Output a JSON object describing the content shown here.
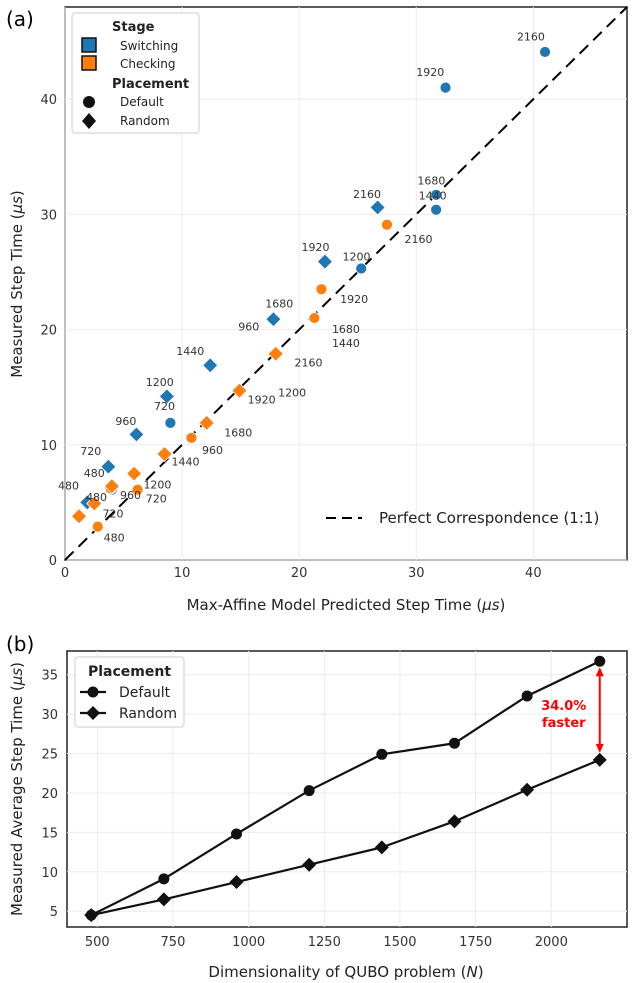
{
  "panel_a": {
    "label": "(a)",
    "chart_data": {
      "type": "scatter",
      "xlabel": "Max-Affine Model Predicted Step Time (",
      "xlabel_unit": "μs",
      "ylabel": "Measured Step Time (",
      "ylabel_unit": "μs",
      "xlim": [
        0,
        48
      ],
      "ylim": [
        0,
        48
      ],
      "xticks": [
        0,
        10,
        20,
        30,
        40
      ],
      "yticks": [
        0,
        10,
        20,
        30,
        40
      ],
      "reference_line": {
        "label": "Perfect Correspondence (1:1)",
        "slope": 1
      },
      "colors": {
        "Switching": "#1f77b4",
        "Checking": "#ff7f0e"
      },
      "legend": {
        "stage_title": "Stage",
        "stage_items": [
          "Switching",
          "Checking"
        ],
        "placement_title": "Placement",
        "placement_items": [
          "Default",
          "Random"
        ]
      },
      "series": [
        {
          "name": "Switching Default",
          "stage": "Switching",
          "marker": "circle",
          "points": [
            {
              "n": 480,
              "x": 2.5,
              "y": 5.0
            },
            {
              "n": 720,
              "x": 4.0,
              "y": 6.1
            },
            {
              "n": 960,
              "x": 9.0,
              "y": 11.9
            },
            {
              "n": 1200,
              "x": 25.3,
              "y": 25.3
            },
            {
              "n": 1440,
              "x": 31.7,
              "y": 30.4
            },
            {
              "n": 1680,
              "x": 31.7,
              "y": 31.7
            },
            {
              "n": 1920,
              "x": 32.5,
              "y": 41.0
            },
            {
              "n": 2160,
              "x": 41.0,
              "y": 44.1
            }
          ]
        },
        {
          "name": "Checking Default",
          "stage": "Checking",
          "marker": "circle",
          "points": [
            {
              "n": 480,
              "x": 2.8,
              "y": 2.9
            },
            {
              "n": 720,
              "x": 3.9,
              "y": 6.2
            },
            {
              "n": 960,
              "x": 6.2,
              "y": 6.1
            },
            {
              "n": 1200,
              "x": 6.2,
              "y": 6.1
            },
            {
              "n": 1440,
              "x": 10.8,
              "y": 10.6
            },
            {
              "n": 1680,
              "x": 21.3,
              "y": 21.0
            },
            {
              "n": 1920,
              "x": 21.9,
              "y": 23.5
            },
            {
              "n": 2160,
              "x": 27.5,
              "y": 29.1
            }
          ]
        },
        {
          "name": "Switching Random",
          "stage": "Switching",
          "marker": "diamond",
          "points": [
            {
              "n": 480,
              "x": 1.9,
              "y": 5.0
            },
            {
              "n": 720,
              "x": 3.7,
              "y": 8.1
            },
            {
              "n": 960,
              "x": 6.1,
              "y": 10.9
            },
            {
              "n": 1200,
              "x": 8.7,
              "y": 14.2
            },
            {
              "n": 1440,
              "x": 12.4,
              "y": 16.9
            },
            {
              "n": 1680,
              "x": 17.8,
              "y": 20.9
            },
            {
              "n": 1920,
              "x": 22.2,
              "y": 25.9
            },
            {
              "n": 2160,
              "x": 26.7,
              "y": 30.6
            }
          ]
        },
        {
          "name": "Checking Random",
          "stage": "Checking",
          "marker": "diamond",
          "points": [
            {
              "n": 480,
              "x": 1.2,
              "y": 3.8
            },
            {
              "n": 720,
              "x": 2.5,
              "y": 4.9
            },
            {
              "n": 960,
              "x": 4.0,
              "y": 6.4
            },
            {
              "n": 1200,
              "x": 5.9,
              "y": 7.5
            },
            {
              "n": 1440,
              "x": 8.5,
              "y": 9.2
            },
            {
              "n": 1680,
              "x": 12.1,
              "y": 11.9
            },
            {
              "n": 1920,
              "x": 14.9,
              "y": 14.7
            },
            {
              "n": 2160,
              "x": 18.0,
              "y": 17.9
            }
          ]
        }
      ],
      "point_labels": [
        {
          "text": "2160",
          "x": 38.6,
          "y": 45.1
        },
        {
          "text": "1920",
          "x": 30.0,
          "y": 42.0
        },
        {
          "text": "1680",
          "x": 30.1,
          "y": 32.6
        },
        {
          "text": "1440",
          "x": 30.2,
          "y": 31.3
        },
        {
          "text": "2160",
          "x": 24.6,
          "y": 31.4
        },
        {
          "text": "2160",
          "x": 29.0,
          "y": 27.5
        },
        {
          "text": "1920",
          "x": 20.2,
          "y": 26.8
        },
        {
          "text": "1200",
          "x": 23.7,
          "y": 26.0
        },
        {
          "text": "1920",
          "x": 23.5,
          "y": 22.3
        },
        {
          "text": "1680",
          "x": 17.1,
          "y": 21.9
        },
        {
          "text": "960",
          "x": 14.8,
          "y": 19.9
        },
        {
          "text": "1680",
          "x": 22.8,
          "y": 19.7
        },
        {
          "text": "1440",
          "x": 22.8,
          "y": 18.5
        },
        {
          "text": "1440",
          "x": 9.5,
          "y": 17.8
        },
        {
          "text": "2160",
          "x": 19.6,
          "y": 16.8
        },
        {
          "text": "1200",
          "x": 6.9,
          "y": 15.1
        },
        {
          "text": "1920",
          "x": 15.6,
          "y": 13.6
        },
        {
          "text": "1200",
          "x": 18.2,
          "y": 14.2
        },
        {
          "text": "720",
          "x": 7.6,
          "y": 13.0
        },
        {
          "text": "960",
          "x": 4.3,
          "y": 11.7
        },
        {
          "text": "1680",
          "x": 13.6,
          "y": 10.7
        },
        {
          "text": "960",
          "x": 11.7,
          "y": 9.2
        },
        {
          "text": "720",
          "x": 1.3,
          "y": 9.1
        },
        {
          "text": "1440",
          "x": 9.1,
          "y": 8.2
        },
        {
          "text": "480",
          "x": 1.6,
          "y": 7.2
        },
        {
          "text": "1200",
          "x": 6.7,
          "y": 6.2
        },
        {
          "text": "960",
          "x": 4.7,
          "y": 5.3
        },
        {
          "text": "720",
          "x": 6.9,
          "y": 5.0
        },
        {
          "text": "480",
          "x": -0.6,
          "y": 6.1
        },
        {
          "text": "480",
          "x": 1.8,
          "y": 5.1
        },
        {
          "text": "720",
          "x": 3.2,
          "y": 3.7
        },
        {
          "text": "480",
          "x": 3.3,
          "y": 1.6
        }
      ]
    }
  },
  "panel_b": {
    "label": "(b)",
    "chart_data": {
      "type": "line",
      "xlabel": "Dimensionality of QUBO problem (",
      "xlabel_var": "N",
      "ylabel": "Measured Average  Step Time (",
      "ylabel_unit": "μs",
      "x": [
        480,
        720,
        960,
        1200,
        1440,
        1680,
        1920,
        2160
      ],
      "xlim": [
        400,
        2250
      ],
      "ylim": [
        3,
        38
      ],
      "xticks": [
        500,
        750,
        1000,
        1250,
        1500,
        1750,
        2000
      ],
      "yticks": [
        5,
        10,
        15,
        20,
        25,
        30,
        35
      ],
      "legend_title": "Placement",
      "series": [
        {
          "name": "Default",
          "marker": "circle",
          "values": [
            4.5,
            9.1,
            14.8,
            20.3,
            24.9,
            26.3,
            32.3,
            36.7
          ]
        },
        {
          "name": "Random",
          "marker": "diamond",
          "values": [
            4.5,
            6.5,
            8.7,
            10.9,
            13.1,
            16.4,
            20.4,
            24.2
          ]
        }
      ],
      "annotation": {
        "line1": "34.0%",
        "line2": "faster",
        "color": "#ff0000",
        "x": 2160,
        "y_from": 24.2,
        "y_to": 36.7
      }
    }
  }
}
